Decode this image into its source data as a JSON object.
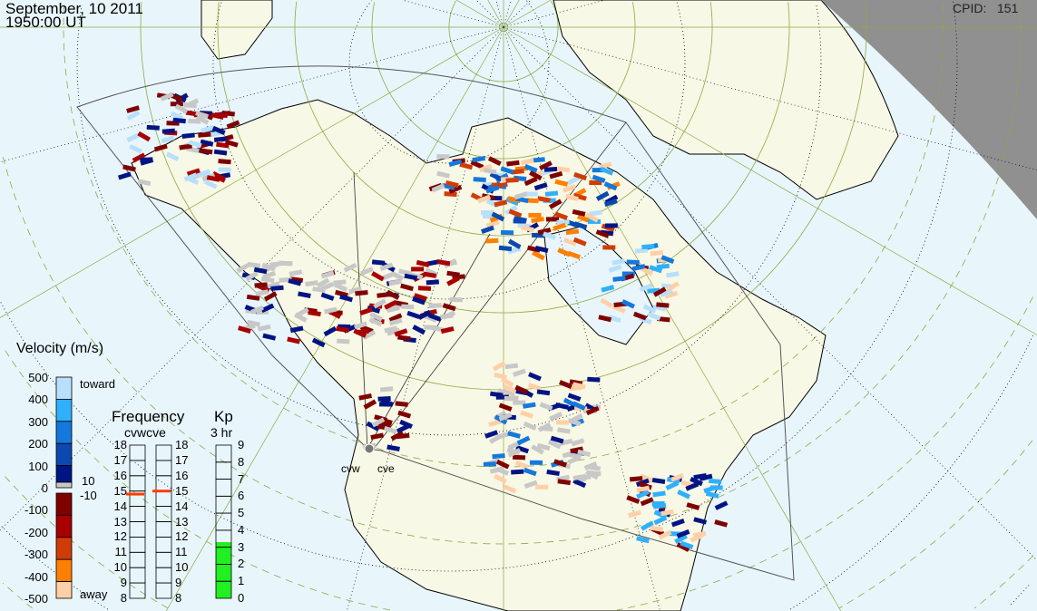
{
  "header": {
    "date": "September, 10 2011",
    "time": "1950:00 UT",
    "cpid_label": "CPID:",
    "cpid_value": "151"
  },
  "radars": [
    {
      "code": "cvw"
    },
    {
      "code": "cve"
    }
  ],
  "velocity_scale": {
    "title": "Velocity (m/s)",
    "ticks": [
      "500",
      "400",
      "300",
      "200",
      "100",
      "0",
      "-100",
      "-200",
      "-300",
      "-400",
      "-500"
    ],
    "toward_label": "toward",
    "away_label": "away",
    "inner_pos": "10",
    "inner_neg": "-10",
    "colors": [
      "#b8e0fc",
      "#30b0fc",
      "#1478dc",
      "#0a4ab0",
      "#001484",
      "#c8c8c8",
      "#800000",
      "#a80000",
      "#d03c08",
      "#ff8000",
      "#ffd0a8"
    ]
  },
  "frequency": {
    "title": "Frequency",
    "subtitle": "cvwcve",
    "ticks": [
      "18",
      "17",
      "16",
      "15",
      "14",
      "13",
      "12",
      "11",
      "10",
      "9",
      "8"
    ],
    "unit_range_mhz": [
      8,
      18
    ],
    "cvw_mhz": 14.8,
    "cve_mhz": 15.0,
    "marker_color": "#ff3c00"
  },
  "kp": {
    "title": "Kp",
    "subtitle": "3 hr",
    "ticks": [
      "9",
      "8",
      "7",
      "6",
      "5",
      "4",
      "3",
      "2",
      "1",
      "0"
    ],
    "value": 3.3,
    "fill_color": "#20f020"
  },
  "map_colors": {
    "ocean": "#e8f6fc",
    "land": "#f8f8e6",
    "night": "#909090",
    "grid": "#90a840"
  }
}
